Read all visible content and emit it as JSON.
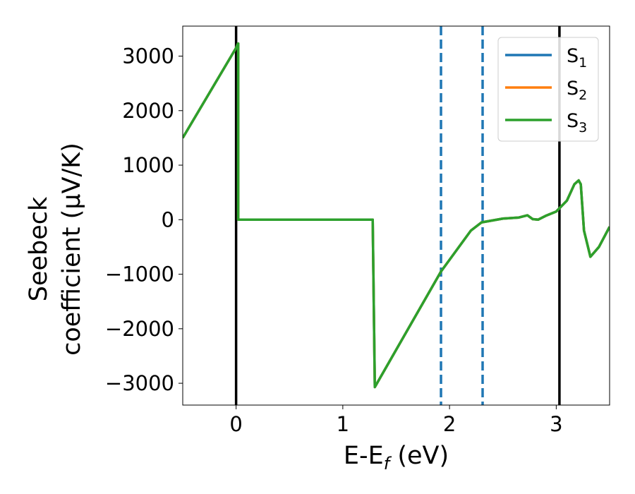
{
  "chart_data": {
    "type": "line",
    "xlabel": "E-E",
    "xlabel_subscript": "f",
    "xlabel_unit": " (eV)",
    "ylabel_line1": "Seebeck",
    "ylabel_line2": "coefficient  (μV/K)",
    "xlim": [
      -0.5,
      3.5
    ],
    "ylim": [
      -3400,
      3550
    ],
    "xticks": [
      0,
      1,
      2,
      3
    ],
    "xtick_labels": [
      "0",
      "1",
      "2",
      "3"
    ],
    "yticks": [
      3000,
      2000,
      1000,
      0,
      -1000,
      -2000,
      -3000
    ],
    "ytick_labels": [
      "3000",
      "2000",
      "1000",
      "0",
      "−1000",
      "−2000",
      "−3000"
    ],
    "grid": false,
    "legend_placement": "upper-right",
    "series": [
      {
        "name": "S",
        "sub": "1",
        "color": "#1f77b4",
        "x": [
          -0.5,
          0,
          0.018,
          0.02,
          0.02,
          1.28,
          1.28,
          1.3,
          1.92,
          2.2,
          2.3,
          2.5,
          2.65,
          2.73,
          2.78,
          2.83,
          2.9,
          3.0,
          3.1,
          3.17,
          3.21,
          3.23,
          3.26,
          3.32,
          3.4,
          3.5
        ],
        "y": [
          1500,
          3150,
          3230,
          3230,
          0,
          0,
          0,
          -3070,
          -950,
          -200,
          -50,
          20,
          40,
          80,
          10,
          0,
          70,
          150,
          350,
          650,
          720,
          650,
          -200,
          -680,
          -500,
          -130
        ]
      },
      {
        "name": "S",
        "sub": "2",
        "color": "#ff7f0e",
        "x": [
          -0.5,
          0,
          0.018,
          0.02,
          0.02,
          1.28,
          1.28,
          1.3,
          1.92,
          2.2,
          2.3,
          2.5,
          2.65,
          2.73,
          2.78,
          2.83,
          2.9,
          3.0,
          3.1,
          3.17,
          3.21,
          3.23,
          3.26,
          3.32,
          3.4,
          3.5
        ],
        "y": [
          1500,
          3150,
          3230,
          3230,
          0,
          0,
          0,
          -3070,
          -950,
          -200,
          -50,
          20,
          40,
          80,
          10,
          0,
          70,
          150,
          350,
          650,
          720,
          650,
          -200,
          -680,
          -500,
          -130
        ]
      },
      {
        "name": "S",
        "sub": "3",
        "color": "#2ca02c",
        "x": [
          -0.5,
          0,
          0.018,
          0.02,
          0.02,
          1.28,
          1.28,
          1.3,
          1.92,
          2.2,
          2.3,
          2.5,
          2.65,
          2.73,
          2.78,
          2.83,
          2.9,
          3.0,
          3.1,
          3.17,
          3.21,
          3.23,
          3.26,
          3.32,
          3.4,
          3.5
        ],
        "y": [
          1500,
          3150,
          3230,
          3230,
          0,
          0,
          0,
          -3070,
          -950,
          -200,
          -50,
          20,
          40,
          80,
          10,
          0,
          70,
          150,
          350,
          650,
          720,
          650,
          -200,
          -680,
          -500,
          -130
        ]
      }
    ],
    "vlines": [
      {
        "x": 0,
        "style": "solid",
        "color": "#000000"
      },
      {
        "x": 3.03,
        "style": "solid",
        "color": "#000000"
      },
      {
        "x": 1.92,
        "style": "dashed",
        "color": "#1f77b4"
      },
      {
        "x": 2.31,
        "style": "dashed",
        "color": "#1f77b4"
      }
    ]
  }
}
